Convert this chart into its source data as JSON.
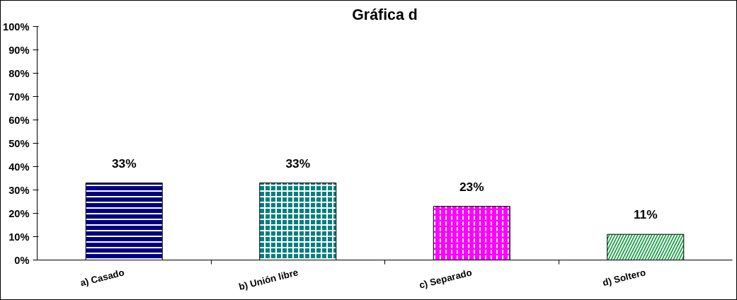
{
  "chart_data": {
    "type": "bar",
    "title": "Gráfica d",
    "categories": [
      "a) Casado",
      "b) Unión libre",
      "c) Separado",
      "d) Soltero"
    ],
    "values": [
      33,
      33,
      23,
      11
    ],
    "colors": [
      "#000080",
      "#008080",
      "#ff00ff",
      "#009933"
    ],
    "value_labels": [
      "33%",
      "33%",
      "23%",
      "11%"
    ],
    "ylim": [
      0,
      100
    ],
    "yticks": [
      {
        "value": 0,
        "label": "0%"
      },
      {
        "value": 10,
        "label": "10%"
      },
      {
        "value": 20,
        "label": "20%"
      },
      {
        "value": 30,
        "label": "30%"
      },
      {
        "value": 40,
        "label": "40%"
      },
      {
        "value": 50,
        "label": "50%"
      },
      {
        "value": 60,
        "label": "60%"
      },
      {
        "value": 70,
        "label": "70%"
      },
      {
        "value": 80,
        "label": "80%"
      },
      {
        "value": 90,
        "label": "90%"
      },
      {
        "value": 100,
        "label": "100%"
      }
    ],
    "grid": false
  }
}
